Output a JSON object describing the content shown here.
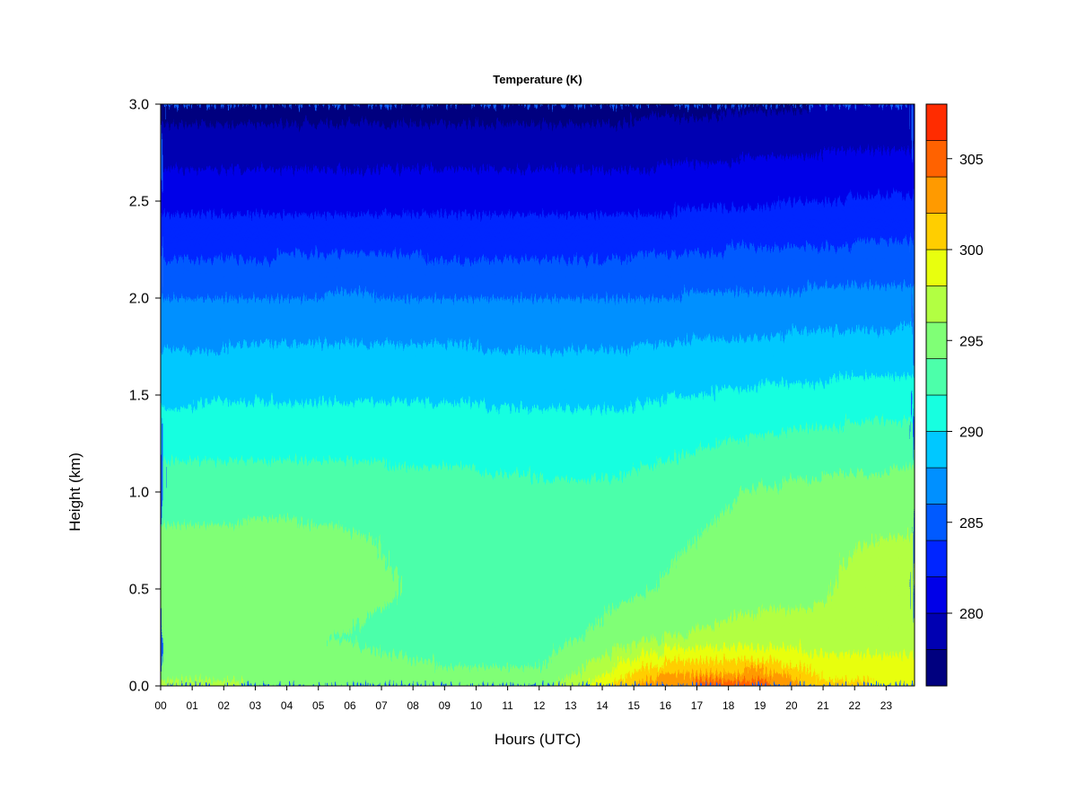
{
  "chart_data": {
    "type": "heatmap",
    "title": "Temperature (K)",
    "xlabel": "Hours (UTC)",
    "ylabel": "Height (km)",
    "x_tick_labels": [
      "00",
      "01",
      "02",
      "03",
      "04",
      "05",
      "06",
      "07",
      "08",
      "09",
      "10",
      "11",
      "12",
      "13",
      "14",
      "15",
      "16",
      "17",
      "18",
      "19",
      "20",
      "21",
      "22",
      "23"
    ],
    "xlim": [
      0,
      23.9
    ],
    "y_ticks": [
      0.0,
      0.5,
      1.0,
      1.5,
      2.0,
      2.5,
      3.0
    ],
    "y_tick_labels": [
      "0.0",
      "0.5",
      "1.0",
      "1.5",
      "2.0",
      "2.5",
      "3.0"
    ],
    "ylim": [
      0,
      3.0
    ],
    "colorbar": {
      "range": [
        276,
        308
      ],
      "levels": [
        276,
        278,
        280,
        282,
        284,
        286,
        288,
        290,
        292,
        294,
        296,
        298,
        300,
        302,
        304,
        306,
        308
      ],
      "colors": [
        "#00007F",
        "#0000B2",
        "#0000E8",
        "#0025FF",
        "#005AFF",
        "#0090FF",
        "#00C8FF",
        "#17FFE0",
        "#4CFFAA",
        "#80FF76",
        "#B2FF42",
        "#E8FF0E",
        "#FFCE00",
        "#FF9A00",
        "#FF6200",
        "#FF2C00",
        "#F00000",
        "#B20000",
        "#7F0000"
      ],
      "tick_values": [
        280,
        285,
        290,
        295,
        300,
        305
      ],
      "tick_labels": [
        "280",
        "285",
        "290",
        "295",
        "300",
        "305"
      ]
    },
    "temperature_profiles_K": {
      "heights_km": [
        0.0,
        0.1,
        0.25,
        0.5,
        0.75,
        1.0,
        1.25,
        1.5,
        1.75,
        2.0,
        2.25,
        2.5,
        2.75,
        3.0
      ],
      "hours": [
        0,
        2,
        4,
        6,
        8,
        10,
        12,
        13,
        14,
        15,
        16,
        17,
        18,
        19,
        20,
        21,
        22,
        23.9
      ],
      "values": [
        [
          296.5,
          295.2,
          294.6,
          295.0,
          294.4,
          293.1,
          291.3,
          289.6,
          287.9,
          286.0,
          283.6,
          281.2,
          279.2,
          277.0
        ],
        [
          296.3,
          295.0,
          294.5,
          295.3,
          294.5,
          293.2,
          291.4,
          289.7,
          288.0,
          286.0,
          283.6,
          281.2,
          279.2,
          277.0
        ],
        [
          296.0,
          294.8,
          294.2,
          295.0,
          294.6,
          293.2,
          291.4,
          289.8,
          288.1,
          286.1,
          283.7,
          281.3,
          279.3,
          277.1
        ],
        [
          295.5,
          294.5,
          293.9,
          294.5,
          294.3,
          293.1,
          291.4,
          289.8,
          288.1,
          286.2,
          283.8,
          281.4,
          279.3,
          277.2
        ],
        [
          295.0,
          294.2,
          293.5,
          293.9,
          293.6,
          292.9,
          291.3,
          289.8,
          288.1,
          286.1,
          283.7,
          281.4,
          279.4,
          277.3
        ],
        [
          294.9,
          293.9,
          293.2,
          293.4,
          293.0,
          292.6,
          291.3,
          289.7,
          288.0,
          286.0,
          283.6,
          281.3,
          279.3,
          277.2
        ],
        [
          295.3,
          294.0,
          293.4,
          293.3,
          293.0,
          292.4,
          291.1,
          289.6,
          287.9,
          285.9,
          283.6,
          281.3,
          279.3,
          277.2
        ],
        [
          296.8,
          295.0,
          293.7,
          293.4,
          293.0,
          292.3,
          291.0,
          289.6,
          287.9,
          285.9,
          283.6,
          281.3,
          279.3,
          277.2
        ],
        [
          299.5,
          297.0,
          294.4,
          293.5,
          293.1,
          292.3,
          291.0,
          289.6,
          287.9,
          285.9,
          283.6,
          281.3,
          279.3,
          277.2
        ],
        [
          302.3,
          299.2,
          295.3,
          293.7,
          293.3,
          292.6,
          291.2,
          289.7,
          288.0,
          286.0,
          283.7,
          281.4,
          279.4,
          277.3
        ],
        [
          304.3,
          300.7,
          296.0,
          294.2,
          293.6,
          293.0,
          291.5,
          289.9,
          288.2,
          286.1,
          283.8,
          281.5,
          279.5,
          277.4
        ],
        [
          304.6,
          301.0,
          296.3,
          294.6,
          294.0,
          293.4,
          291.8,
          290.0,
          288.3,
          286.2,
          283.9,
          281.6,
          279.6,
          277.5
        ],
        [
          304.6,
          301.2,
          296.6,
          295.0,
          294.5,
          293.8,
          292.1,
          290.2,
          288.4,
          286.3,
          284.0,
          281.7,
          279.7,
          277.6
        ],
        [
          305.2,
          301.6,
          296.8,
          295.3,
          294.9,
          294.2,
          292.4,
          290.4,
          288.5,
          286.3,
          284.0,
          281.8,
          279.8,
          277.7
        ],
        [
          303.4,
          300.1,
          296.6,
          295.5,
          295.2,
          294.4,
          292.6,
          290.5,
          288.6,
          286.4,
          284.1,
          281.9,
          279.9,
          277.8
        ],
        [
          301.1,
          298.8,
          296.6,
          295.8,
          295.4,
          294.6,
          292.8,
          290.6,
          288.7,
          286.5,
          284.2,
          282.0,
          280.0,
          277.9
        ],
        [
          300.4,
          298.5,
          297.0,
          296.5,
          295.9,
          294.8,
          292.9,
          290.7,
          288.8,
          286.6,
          284.3,
          282.2,
          280.1,
          278.0
        ],
        [
          300.0,
          298.4,
          297.2,
          296.8,
          296.2,
          295.0,
          293.0,
          290.8,
          288.9,
          286.7,
          284.4,
          282.3,
          280.2,
          278.1
        ]
      ]
    }
  }
}
